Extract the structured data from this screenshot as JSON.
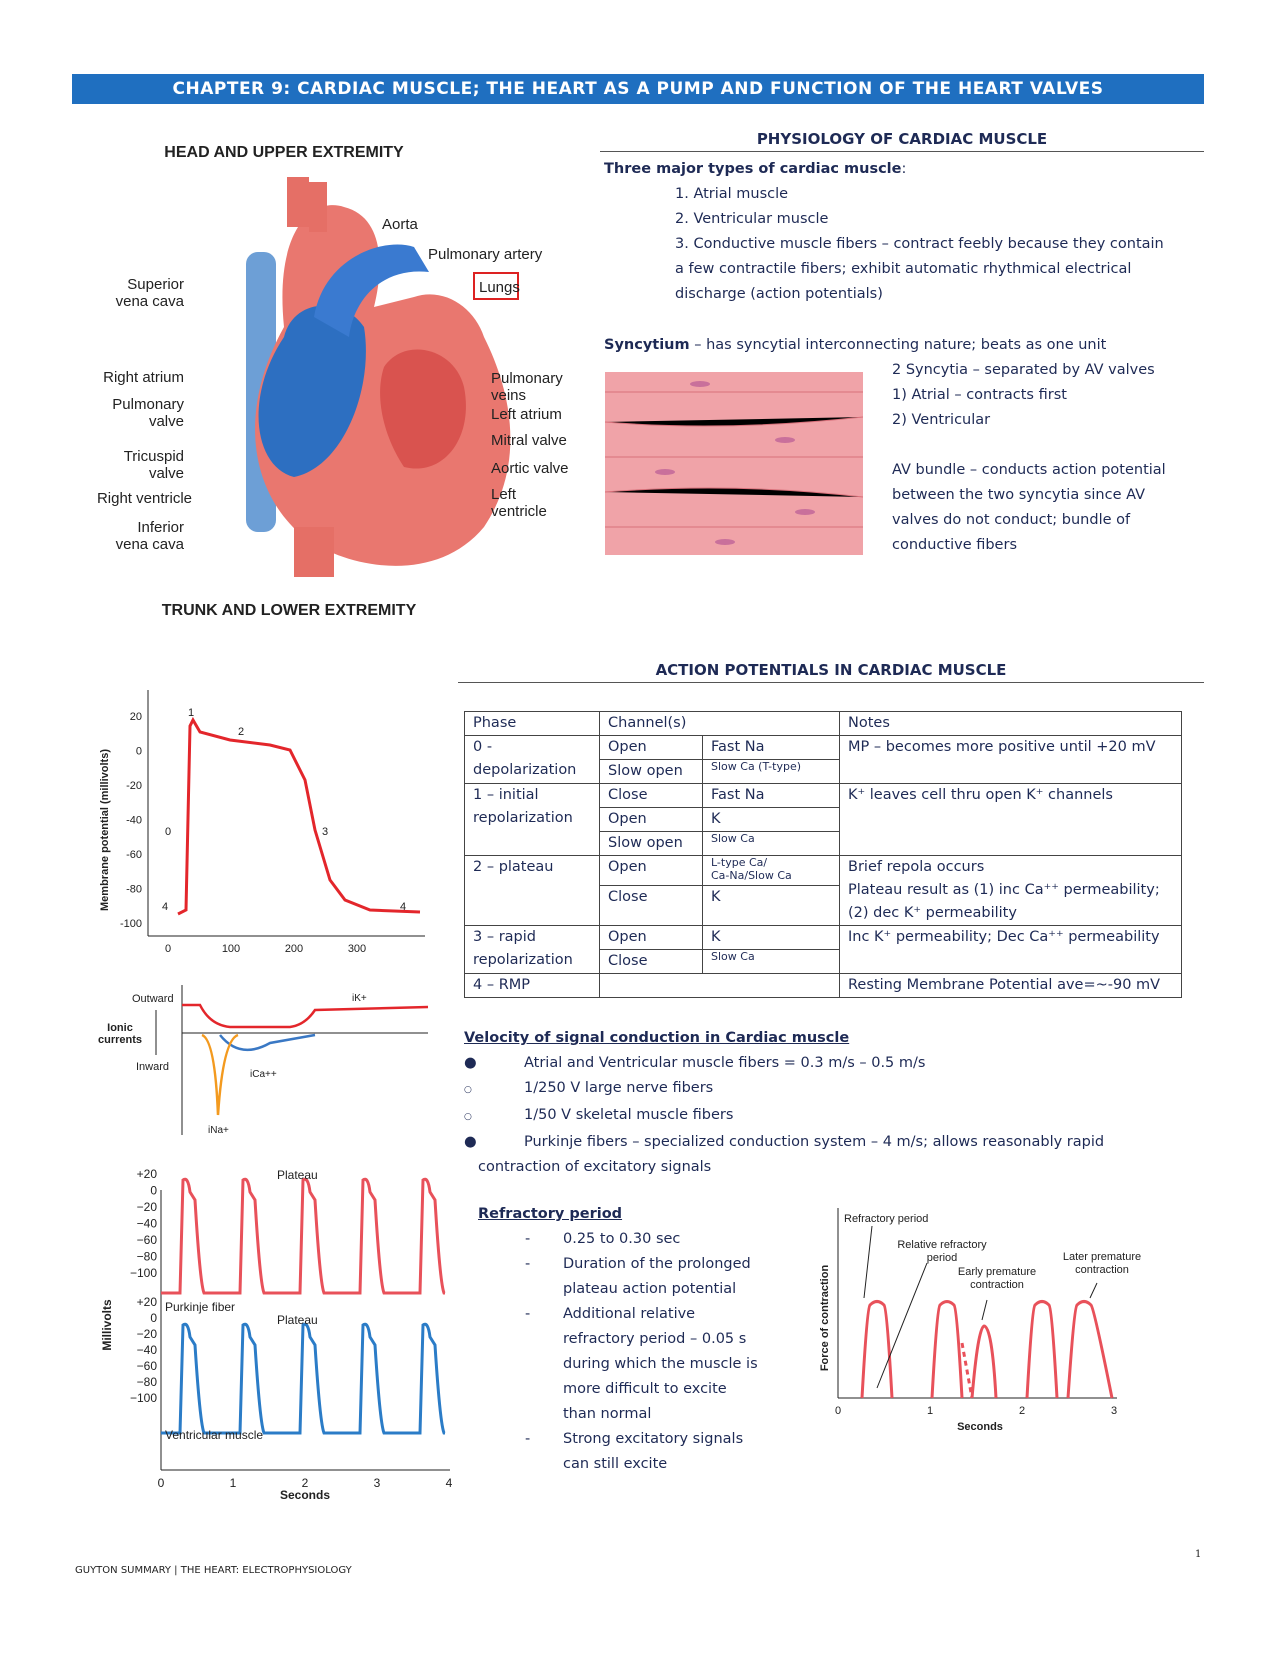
{
  "banner": "CHAPTER 9: CARDIAC MUSCLE; THE HEART AS A PUMP AND FUNCTION OF THE HEART VALVES",
  "heart": {
    "top": "HEAD AND UPPER EXTREMITY",
    "bottom": "TRUNK AND LOWER EXTREMITY",
    "labels": [
      "Aorta",
      "Pulmonary artery",
      "Lungs",
      "Superior\nvena cava",
      "Right atrium",
      "Pulmonary\nvalve",
      "Tricuspid\nvalve",
      "Right ventricle",
      "Inferior\nvena cava",
      "Pulmonary\nveins",
      "Left atrium",
      "Mitral valve",
      "Aortic valve",
      "Left\nventricle"
    ]
  },
  "physiology": {
    "heading": "PHYSIOLOGY OF CARDIAC MUSCLE",
    "types_title": "Three major types of cardiac muscle",
    "types": [
      "1. Atrial muscle",
      "2. Ventricular muscle",
      "3. Conductive muscle fibers – contract feebly because they contain",
      "a few contractile fibers; exhibit automatic rhythmical electrical",
      "discharge (action potentials)"
    ],
    "syncytium_term": "Syncytium",
    "syncytium_def": " – has syncytial interconnecting nature; beats as one unit",
    "syncytia": [
      "2 Syncytia – separated by AV valves",
      "1) Atrial – contracts first",
      "2) Ventricular",
      "",
      "AV bundle – conducts action potential",
      "between the two syncytia since AV",
      "valves do not conduct; bundle of",
      "conductive fibers"
    ]
  },
  "action": {
    "heading": "ACTION POTENTIALS IN CARDIAC MUSCLE",
    "headers": [
      "Phase",
      "Channel(s)",
      "Notes"
    ],
    "rows": {
      "p0": "0 -",
      "p0b": "depolarization",
      "c0a": "Open",
      "c0b": "Fast Na",
      "c0c": "Slow open",
      "c0d": "Slow Ca (T-type)",
      "n0": "MP – becomes more positive until +20 mV",
      "p1": "1 – initial",
      "p1b": "repolarization",
      "c1a": "Close",
      "c1b": "Fast Na",
      "c1c": "Open",
      "c1d": "K",
      "c1e": "Slow open",
      "c1f": "Slow Ca",
      "n1": "K⁺ leaves cell thru open K⁺ channels",
      "p2": "2 – plateau",
      "c2a": "Open",
      "c2b": "L-type Ca/",
      "c2b2": "Ca-Na/Slow Ca",
      "c2c": "Close",
      "c2d": "K",
      "n2a": "Brief repola occurs",
      "n2b": "Plateau result as (1) inc Ca⁺⁺ permeability;",
      "n2c": "(2) dec K⁺ permeability",
      "p3": "3 – rapid",
      "p3b": "repolarization",
      "c3a": "Open",
      "c3b": "K",
      "c3c": "Close",
      "c3d": "Slow Ca",
      "n3": "Inc K⁺ permeability; Dec Ca⁺⁺ permeability",
      "p4": "4 – RMP",
      "n4": "Resting Membrane Potential ave=~-90 mV"
    }
  },
  "velocity": {
    "heading": "Velocity of signal conduction in Cardiac muscle",
    "items": [
      "Atrial and Ventricular muscle fibers = 0.3 m/s – 0.5 m/s",
      "1/250 V large nerve fibers",
      "1/50 V skeletal muscle fibers",
      "Purkinje fibers – specialized conduction system – 4 m/s; allows reasonably rapid"
    ],
    "cont": "contraction of excitatory signals"
  },
  "refractory": {
    "heading": "Refractory period",
    "items": [
      "0.25 to 0.30 sec",
      "Duration of the prolonged",
      "plateau action potential",
      "Additional relative",
      "refractory period – 0.05 s",
      "during which the muscle is",
      "more difficult to excite",
      "than normal",
      "Strong excitatory signals",
      "can still excite"
    ]
  },
  "ap_chart": {
    "ylabel": "Membrane potential (millivolts)",
    "yticks": [
      "20",
      "0",
      "-20",
      "-40",
      "-60",
      "-80",
      "-100"
    ],
    "xticks": [
      "0",
      "100",
      "200",
      "300"
    ],
    "phases": [
      "0",
      "1",
      "2",
      "3",
      "4",
      "4"
    ]
  },
  "ionic": {
    "outward": "Outward",
    "inward": "Inward",
    "label": "Ionic\ncurrents",
    "iK": "iK+",
    "iCa": "iCa++",
    "iNa": "iNa+"
  },
  "mv_chart": {
    "ylabel": "Millivolts",
    "xlabel": "Seconds",
    "yticks": [
      "+20",
      "0",
      "−20",
      "−40",
      "−60",
      "−80",
      "−100"
    ],
    "xticks": [
      "0",
      "1",
      "2",
      "3",
      "4"
    ],
    "plateau": "Plateau",
    "purkinje": "Purkinje fiber",
    "ventricular": "Ventricular muscle"
  },
  "force_chart": {
    "ylabel": "Force of contraction",
    "xlabel": "Seconds",
    "xticks": [
      "0",
      "1",
      "2",
      "3"
    ],
    "refractory": "Refractory period",
    "relative": "Relative refractory\nperiod",
    "early": "Early premature\ncontraction",
    "later": "Later premature\ncontraction"
  },
  "footer": {
    "left": "GUYTON SUMMARY | THE HEART: ELECTROPHYSIOLOGY",
    "page": "1"
  }
}
